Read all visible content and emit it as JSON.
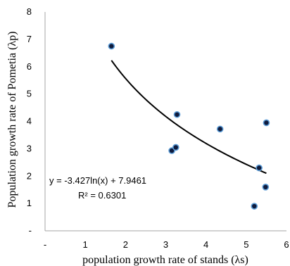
{
  "chart_data": {
    "type": "scatter",
    "title": "",
    "xlabel": "population growth rate of stands (λs)",
    "ylabel": "Population growth rate of Pometia (λp)",
    "xlim": [
      0,
      6
    ],
    "ylim": [
      0,
      8
    ],
    "x_ticks": [
      {
        "value": 0,
        "label": "-"
      },
      {
        "value": 1,
        "label": "1"
      },
      {
        "value": 2,
        "label": "2"
      },
      {
        "value": 3,
        "label": "3"
      },
      {
        "value": 4,
        "label": "4"
      },
      {
        "value": 5,
        "label": "5"
      },
      {
        "value": 6,
        "label": "6"
      }
    ],
    "y_ticks": [
      {
        "value": 0,
        "label": "-"
      },
      {
        "value": 1,
        "label": "1"
      },
      {
        "value": 2,
        "label": "2"
      },
      {
        "value": 3,
        "label": "3"
      },
      {
        "value": 4,
        "label": "4"
      },
      {
        "value": 5,
        "label": "5"
      },
      {
        "value": 6,
        "label": "6"
      },
      {
        "value": 7,
        "label": "7"
      },
      {
        "value": 8,
        "label": "8"
      }
    ],
    "points": [
      {
        "x": 1.65,
        "y": 6.75
      },
      {
        "x": 3.15,
        "y": 2.93
      },
      {
        "x": 3.25,
        "y": 3.05
      },
      {
        "x": 3.28,
        "y": 4.25
      },
      {
        "x": 4.35,
        "y": 3.72
      },
      {
        "x": 5.2,
        "y": 0.9
      },
      {
        "x": 5.32,
        "y": 2.3
      },
      {
        "x": 5.48,
        "y": 1.6
      },
      {
        "x": 5.5,
        "y": 3.95
      }
    ],
    "trendline": {
      "type": "logarithmic",
      "a": -3.427,
      "b": 7.9461,
      "x_range": [
        1.65,
        5.5
      ]
    },
    "equation_label": "y = -3.427ln(x) + 7.9461",
    "r2_label": "R² = 0.6301",
    "grid": false,
    "legend": "none",
    "colors": {
      "point_fill": "#0f1b3d",
      "point_edge": "#5b9bd5",
      "line": "#000000"
    }
  }
}
